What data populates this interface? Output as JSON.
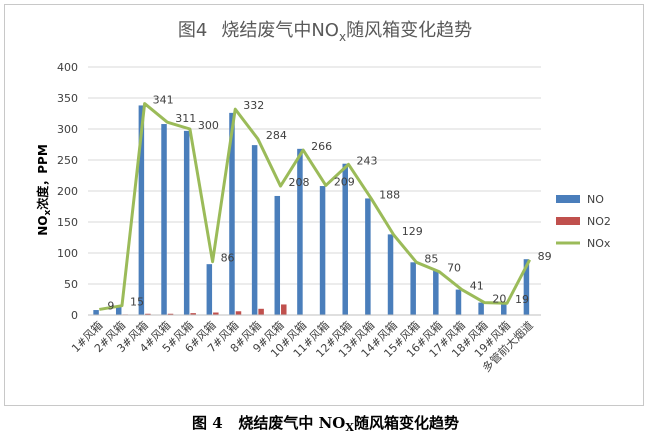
{
  "chart_data": {
    "type": "bar",
    "title": {
      "prefix": "图4",
      "main": "烧结废气中NO",
      "sub": "x",
      "suffix": "随风箱变化趋势"
    },
    "ylabel": {
      "main": "NO",
      "sub": "x",
      "rest": "浓度，PPM"
    },
    "xlabel": "",
    "ylim": [
      0,
      400
    ],
    "yticks": [
      0,
      50,
      100,
      150,
      200,
      250,
      300,
      350,
      400
    ],
    "categories": [
      "1#风箱",
      "2#风箱",
      "3#风箱",
      "4#风箱",
      "5#风箱",
      "6#风箱",
      "7#风箱",
      "8#风箱",
      "9#风箱",
      "10#风箱",
      "11#风箱",
      "12#风箱",
      "13#风箱",
      "14#风箱",
      "15#风箱",
      "16#风箱",
      "17#风箱",
      "18#风箱",
      "19#风箱",
      "多管前大烟道"
    ],
    "series": [
      {
        "name": "NO",
        "kind": "bar",
        "color": "#4a7ebb",
        "values": [
          8,
          14,
          338,
          308,
          297,
          82,
          326,
          274,
          192,
          268,
          208,
          244,
          188,
          130,
          85,
          72,
          41,
          20,
          19,
          90
        ]
      },
      {
        "name": "NO2",
        "kind": "bar",
        "color": "#c0504d",
        "values": [
          0,
          1,
          2,
          2,
          3,
          4,
          6,
          10,
          17,
          0,
          0,
          0,
          0,
          0,
          0,
          0,
          0,
          0,
          0,
          0
        ]
      },
      {
        "name": "NOx",
        "kind": "line",
        "color": "#9bbb59",
        "values": [
          9,
          15,
          341,
          311,
          300,
          86,
          332,
          284,
          208,
          266,
          209,
          243,
          188,
          129,
          85,
          70,
          41,
          20,
          19,
          89
        ],
        "labels": [
          "9",
          "15",
          "341",
          "311",
          "300",
          "86",
          "332",
          "284",
          "208",
          "266",
          "209",
          "243",
          "188",
          "129",
          "85",
          "70",
          "41",
          "20",
          "19",
          "89"
        ]
      }
    ],
    "legend": {
      "position": "right",
      "entries": [
        "NO",
        "NO2",
        "NOx"
      ]
    },
    "grid": true
  },
  "caption": {
    "prefix": "图 4",
    "main": "烧结废气中 NO",
    "sub": "X",
    "suffix": "随风箱变化趋势"
  }
}
